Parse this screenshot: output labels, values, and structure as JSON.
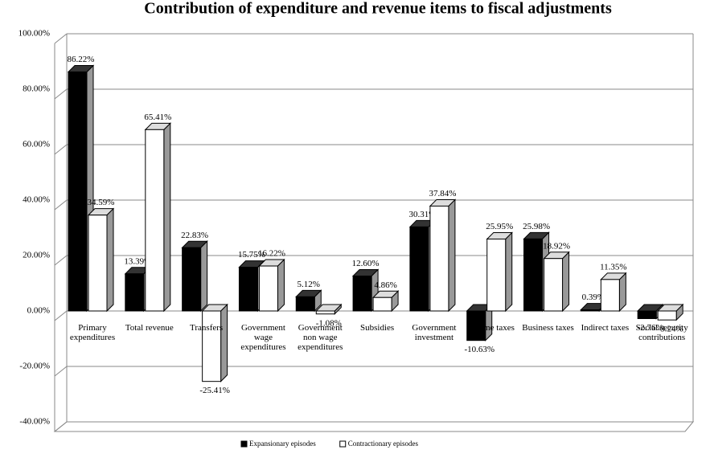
{
  "chart_data": {
    "type": "bar3d",
    "title": "Contribution of expenditure and revenue items to fiscal adjustments",
    "categories": [
      "Primary expenditures",
      "Total revenue",
      "Transfers",
      "Government wage expenditures",
      "Government non wage expenditures",
      "Subsidies",
      "Government investment",
      "Income taxes",
      "Business taxes",
      "Indirect taxes",
      "Social security contributions"
    ],
    "series": [
      {
        "name": "Expansionary episodes",
        "color": "#000000",
        "values": [
          86.22,
          13.39,
          22.83,
          15.75,
          5.12,
          12.6,
          30.31,
          -10.63,
          25.98,
          0.39,
          -2.76
        ],
        "value_labels": [
          "86.22%",
          "13.39%",
          "22.83%",
          "15.75%",
          "5.12%",
          "12.60%",
          "30.31%",
          "-10.63%",
          "25.98%",
          "0.39%",
          "-2.76%"
        ]
      },
      {
        "name": "Contractionary episodes",
        "color": "#ffffff",
        "values": [
          34.59,
          65.41,
          -25.41,
          16.22,
          -1.08,
          4.86,
          37.84,
          25.95,
          18.92,
          11.35,
          -3.24
        ],
        "value_labels": [
          "34.59%",
          "65.41%",
          "-25.41%",
          "16.22%",
          "-1.08%",
          "4.86%",
          "37.84%",
          "25.95%",
          "18.92%",
          "11.35%",
          "-3.24%"
        ]
      }
    ],
    "ylim": [
      -40,
      100
    ],
    "yticks": [
      {
        "value": -40,
        "label": "-40.00%"
      },
      {
        "value": -20,
        "label": "-20.00%"
      },
      {
        "value": 0,
        "label": "0.00%"
      },
      {
        "value": 20,
        "label": "20.00%"
      },
      {
        "value": 40,
        "label": "40.00%"
      },
      {
        "value": 60,
        "label": "60.00%"
      },
      {
        "value": 80,
        "label": "80.00%"
      },
      {
        "value": 100,
        "label": "100.00%"
      }
    ],
    "grid": true,
    "legend": "bottom"
  }
}
